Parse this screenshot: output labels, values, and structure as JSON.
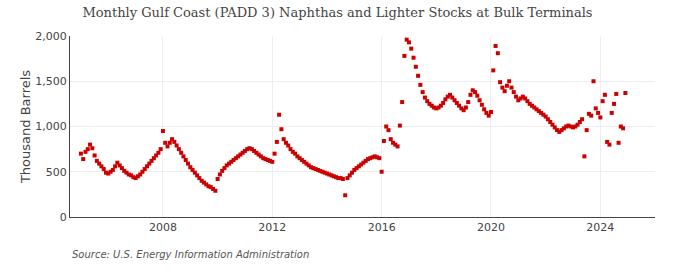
{
  "chart_data": {
    "type": "scatter",
    "title": "Monthly Gulf Coast (PADD 3) Naphthas and Lighter Stocks at Bulk Terminals",
    "ylabel": "Thousand Barrels",
    "annotations": [
      "Source: U.S. Energy Information Administration"
    ],
    "color": "#cc0000",
    "marker": "square",
    "grid": true,
    "xlim": [
      2004.6,
      2026.0
    ],
    "xticks": [
      2008,
      2012,
      2016,
      2020,
      2024
    ],
    "ylim": [
      0,
      2000
    ],
    "yticks": [
      0,
      500,
      {
        "value": 1000,
        "label": "1,000"
      },
      {
        "value": 1500,
        "label": "1,500"
      },
      {
        "value": 2000,
        "label": "2,000"
      }
    ],
    "x": [
      2005.0,
      2005.083,
      2005.167,
      2005.25,
      2005.333,
      2005.417,
      2005.5,
      2005.583,
      2005.667,
      2005.75,
      2005.833,
      2005.917,
      2006.0,
      2006.083,
      2006.167,
      2006.25,
      2006.333,
      2006.417,
      2006.5,
      2006.583,
      2006.667,
      2006.75,
      2006.833,
      2006.917,
      2007.0,
      2007.083,
      2007.167,
      2007.25,
      2007.333,
      2007.417,
      2007.5,
      2007.583,
      2007.667,
      2007.75,
      2007.833,
      2007.917,
      2008.0,
      2008.083,
      2008.167,
      2008.25,
      2008.333,
      2008.417,
      2008.5,
      2008.583,
      2008.667,
      2008.75,
      2008.833,
      2008.917,
      2009.0,
      2009.083,
      2009.167,
      2009.25,
      2009.333,
      2009.417,
      2009.5,
      2009.583,
      2009.667,
      2009.75,
      2009.833,
      2009.917,
      2010.0,
      2010.083,
      2010.167,
      2010.25,
      2010.333,
      2010.417,
      2010.5,
      2010.583,
      2010.667,
      2010.75,
      2010.833,
      2010.917,
      2011.0,
      2011.083,
      2011.167,
      2011.25,
      2011.333,
      2011.417,
      2011.5,
      2011.583,
      2011.667,
      2011.75,
      2011.833,
      2011.917,
      2012.0,
      2012.083,
      2012.167,
      2012.25,
      2012.333,
      2012.417,
      2012.5,
      2012.583,
      2012.667,
      2012.75,
      2012.833,
      2012.917,
      2013.0,
      2013.083,
      2013.167,
      2013.25,
      2013.333,
      2013.417,
      2013.5,
      2013.583,
      2013.667,
      2013.75,
      2013.833,
      2013.917,
      2014.0,
      2014.083,
      2014.167,
      2014.25,
      2014.333,
      2014.417,
      2014.5,
      2014.583,
      2014.667,
      2014.75,
      2014.833,
      2014.917,
      2015.0,
      2015.083,
      2015.167,
      2015.25,
      2015.333,
      2015.417,
      2015.5,
      2015.583,
      2015.667,
      2015.75,
      2015.833,
      2015.917,
      2016.0,
      2016.083,
      2016.167,
      2016.25,
      2016.333,
      2016.417,
      2016.5,
      2016.583,
      2016.667,
      2016.75,
      2016.833,
      2016.917,
      2017.0,
      2017.083,
      2017.167,
      2017.25,
      2017.333,
      2017.417,
      2017.5,
      2017.583,
      2017.667,
      2017.75,
      2017.833,
      2017.917,
      2018.0,
      2018.083,
      2018.167,
      2018.25,
      2018.333,
      2018.417,
      2018.5,
      2018.583,
      2018.667,
      2018.75,
      2018.833,
      2018.917,
      2019.0,
      2019.083,
      2019.167,
      2019.25,
      2019.333,
      2019.417,
      2019.5,
      2019.583,
      2019.667,
      2019.75,
      2019.833,
      2019.917,
      2020.0,
      2020.083,
      2020.167,
      2020.25,
      2020.333,
      2020.417,
      2020.5,
      2020.583,
      2020.667,
      2020.75,
      2020.833,
      2020.917,
      2021.0,
      2021.083,
      2021.167,
      2021.25,
      2021.333,
      2021.417,
      2021.5,
      2021.583,
      2021.667,
      2021.75,
      2021.833,
      2021.917,
      2022.0,
      2022.083,
      2022.167,
      2022.25,
      2022.333,
      2022.417,
      2022.5,
      2022.583,
      2022.667,
      2022.75,
      2022.833,
      2022.917,
      2023.0,
      2023.083,
      2023.167,
      2023.25,
      2023.333,
      2023.417,
      2023.5,
      2023.583,
      2023.667,
      2023.75,
      2023.833,
      2023.917,
      2024.0,
      2024.083,
      2024.167,
      2024.25,
      2024.333,
      2024.417,
      2024.5,
      2024.583,
      2024.667,
      2024.75,
      2024.833,
      2024.917
    ],
    "values": [
      700,
      640,
      720,
      750,
      800,
      760,
      680,
      620,
      590,
      560,
      530,
      490,
      480,
      500,
      520,
      560,
      600,
      570,
      540,
      510,
      490,
      470,
      460,
      440,
      430,
      450,
      470,
      500,
      530,
      560,
      590,
      620,
      650,
      680,
      710,
      750,
      950,
      820,
      780,
      820,
      860,
      830,
      790,
      750,
      710,
      670,
      630,
      590,
      550,
      520,
      490,
      460,
      430,
      400,
      380,
      360,
      340,
      330,
      310,
      290,
      420,
      470,
      510,
      540,
      570,
      590,
      610,
      630,
      650,
      670,
      690,
      710,
      730,
      750,
      760,
      750,
      730,
      710,
      690,
      670,
      650,
      640,
      630,
      620,
      610,
      700,
      830,
      1130,
      970,
      860,
      820,
      790,
      750,
      720,
      700,
      670,
      650,
      630,
      610,
      590,
      570,
      550,
      540,
      530,
      520,
      510,
      500,
      490,
      480,
      470,
      460,
      450,
      440,
      430,
      430,
      420,
      240,
      430,
      460,
      490,
      520,
      540,
      560,
      580,
      600,
      620,
      640,
      650,
      660,
      670,
      660,
      650,
      500,
      840,
      1000,
      960,
      860,
      820,
      800,
      780,
      1010,
      1270,
      1780,
      1960,
      1930,
      1860,
      1760,
      1660,
      1560,
      1460,
      1380,
      1320,
      1280,
      1250,
      1230,
      1210,
      1200,
      1210,
      1230,
      1260,
      1300,
      1330,
      1350,
      1320,
      1290,
      1260,
      1230,
      1200,
      1180,
      1210,
      1270,
      1350,
      1400,
      1380,
      1340,
      1290,
      1240,
      1190,
      1150,
      1120,
      1160,
      1620,
      1890,
      1810,
      1490,
      1430,
      1390,
      1450,
      1500,
      1430,
      1380,
      1330,
      1290,
      1310,
      1330,
      1310,
      1280,
      1250,
      1230,
      1210,
      1190,
      1170,
      1150,
      1130,
      1110,
      1080,
      1050,
      1020,
      990,
      960,
      940,
      960,
      980,
      1000,
      1010,
      1000,
      990,
      1000,
      1020,
      1050,
      1080,
      670,
      960,
      1140,
      1120,
      1500,
      1200,
      1150,
      1100,
      1280,
      1350,
      830,
      800,
      1150,
      1250,
      1360,
      820,
      1000,
      980,
      1370
    ]
  }
}
